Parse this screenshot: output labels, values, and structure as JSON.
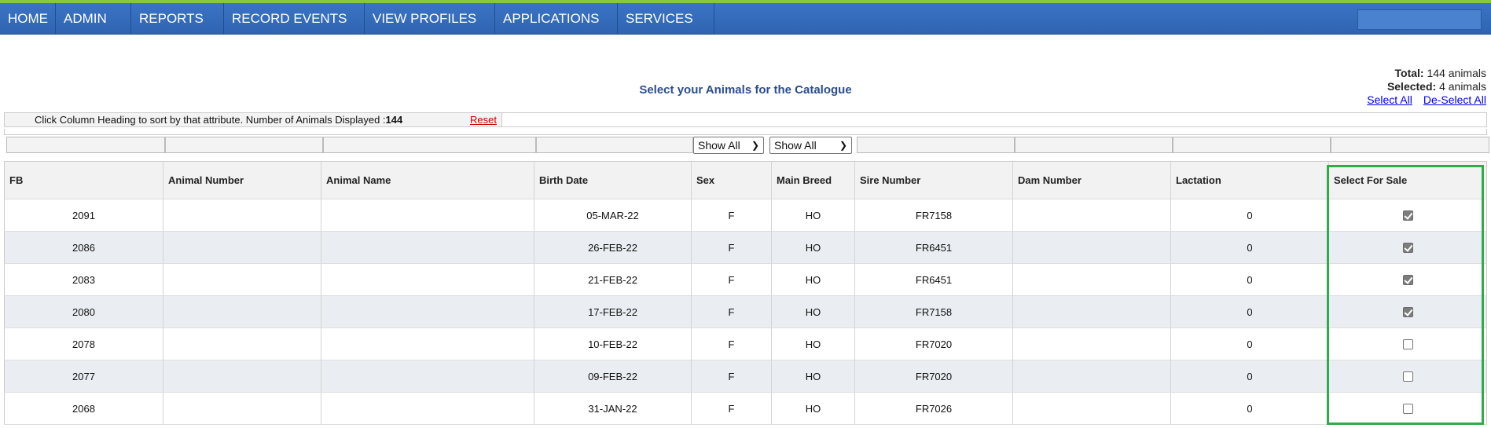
{
  "nav": {
    "items": [
      "HOME",
      "ADMIN",
      "REPORTS",
      "RECORD EVENTS",
      "VIEW PROFILES",
      "APPLICATIONS",
      "SERVICES"
    ]
  },
  "page": {
    "title": "Select your Animals for the Catalogue"
  },
  "stats": {
    "total_label": "Total:",
    "total_value": "144 animals",
    "selected_label": "Selected:",
    "selected_value": "4 animals",
    "select_all": "Select All",
    "deselect_all": "De-Select All"
  },
  "info": {
    "text": "Click Column Heading to sort by that attribute. Number of Animals Displayed :",
    "count": "144",
    "reset": "Reset"
  },
  "filters": {
    "sex": "Show All",
    "breed": "Show All"
  },
  "columns": [
    "FB",
    "Animal Number",
    "Animal Name",
    "Birth Date",
    "Sex",
    "Main Breed",
    "Sire Number",
    "Dam Number",
    "Lactation",
    "Select For Sale"
  ],
  "rows": [
    {
      "fb": "2091",
      "animal_number": "",
      "animal_name": "",
      "birth_date": "05-MAR-22",
      "sex": "F",
      "breed": "HO",
      "sire": "FR7158",
      "dam": "",
      "lactation": "0",
      "selected": true
    },
    {
      "fb": "2086",
      "animal_number": "",
      "animal_name": "",
      "birth_date": "26-FEB-22",
      "sex": "F",
      "breed": "HO",
      "sire": "FR6451",
      "dam": "",
      "lactation": "0",
      "selected": true
    },
    {
      "fb": "2083",
      "animal_number": "",
      "animal_name": "",
      "birth_date": "21-FEB-22",
      "sex": "F",
      "breed": "HO",
      "sire": "FR6451",
      "dam": "",
      "lactation": "0",
      "selected": true
    },
    {
      "fb": "2080",
      "animal_number": "",
      "animal_name": "",
      "birth_date": "17-FEB-22",
      "sex": "F",
      "breed": "HO",
      "sire": "FR7158",
      "dam": "",
      "lactation": "0",
      "selected": true
    },
    {
      "fb": "2078",
      "animal_number": "",
      "animal_name": "",
      "birth_date": "10-FEB-22",
      "sex": "F",
      "breed": "HO",
      "sire": "FR7020",
      "dam": "",
      "lactation": "0",
      "selected": false
    },
    {
      "fb": "2077",
      "animal_number": "",
      "animal_name": "",
      "birth_date": "09-FEB-22",
      "sex": "F",
      "breed": "HO",
      "sire": "FR7020",
      "dam": "",
      "lactation": "0",
      "selected": false
    },
    {
      "fb": "2068",
      "animal_number": "",
      "animal_name": "",
      "birth_date": "31-JAN-22",
      "sex": "F",
      "breed": "HO",
      "sire": "FR7026",
      "dam": "",
      "lactation": "0",
      "selected": false
    }
  ],
  "colors": {
    "nav_bg": "#2f64b2",
    "title": "#2a4d8f",
    "highlight": "#2eab4a",
    "alt_row": "#eaedf1"
  }
}
